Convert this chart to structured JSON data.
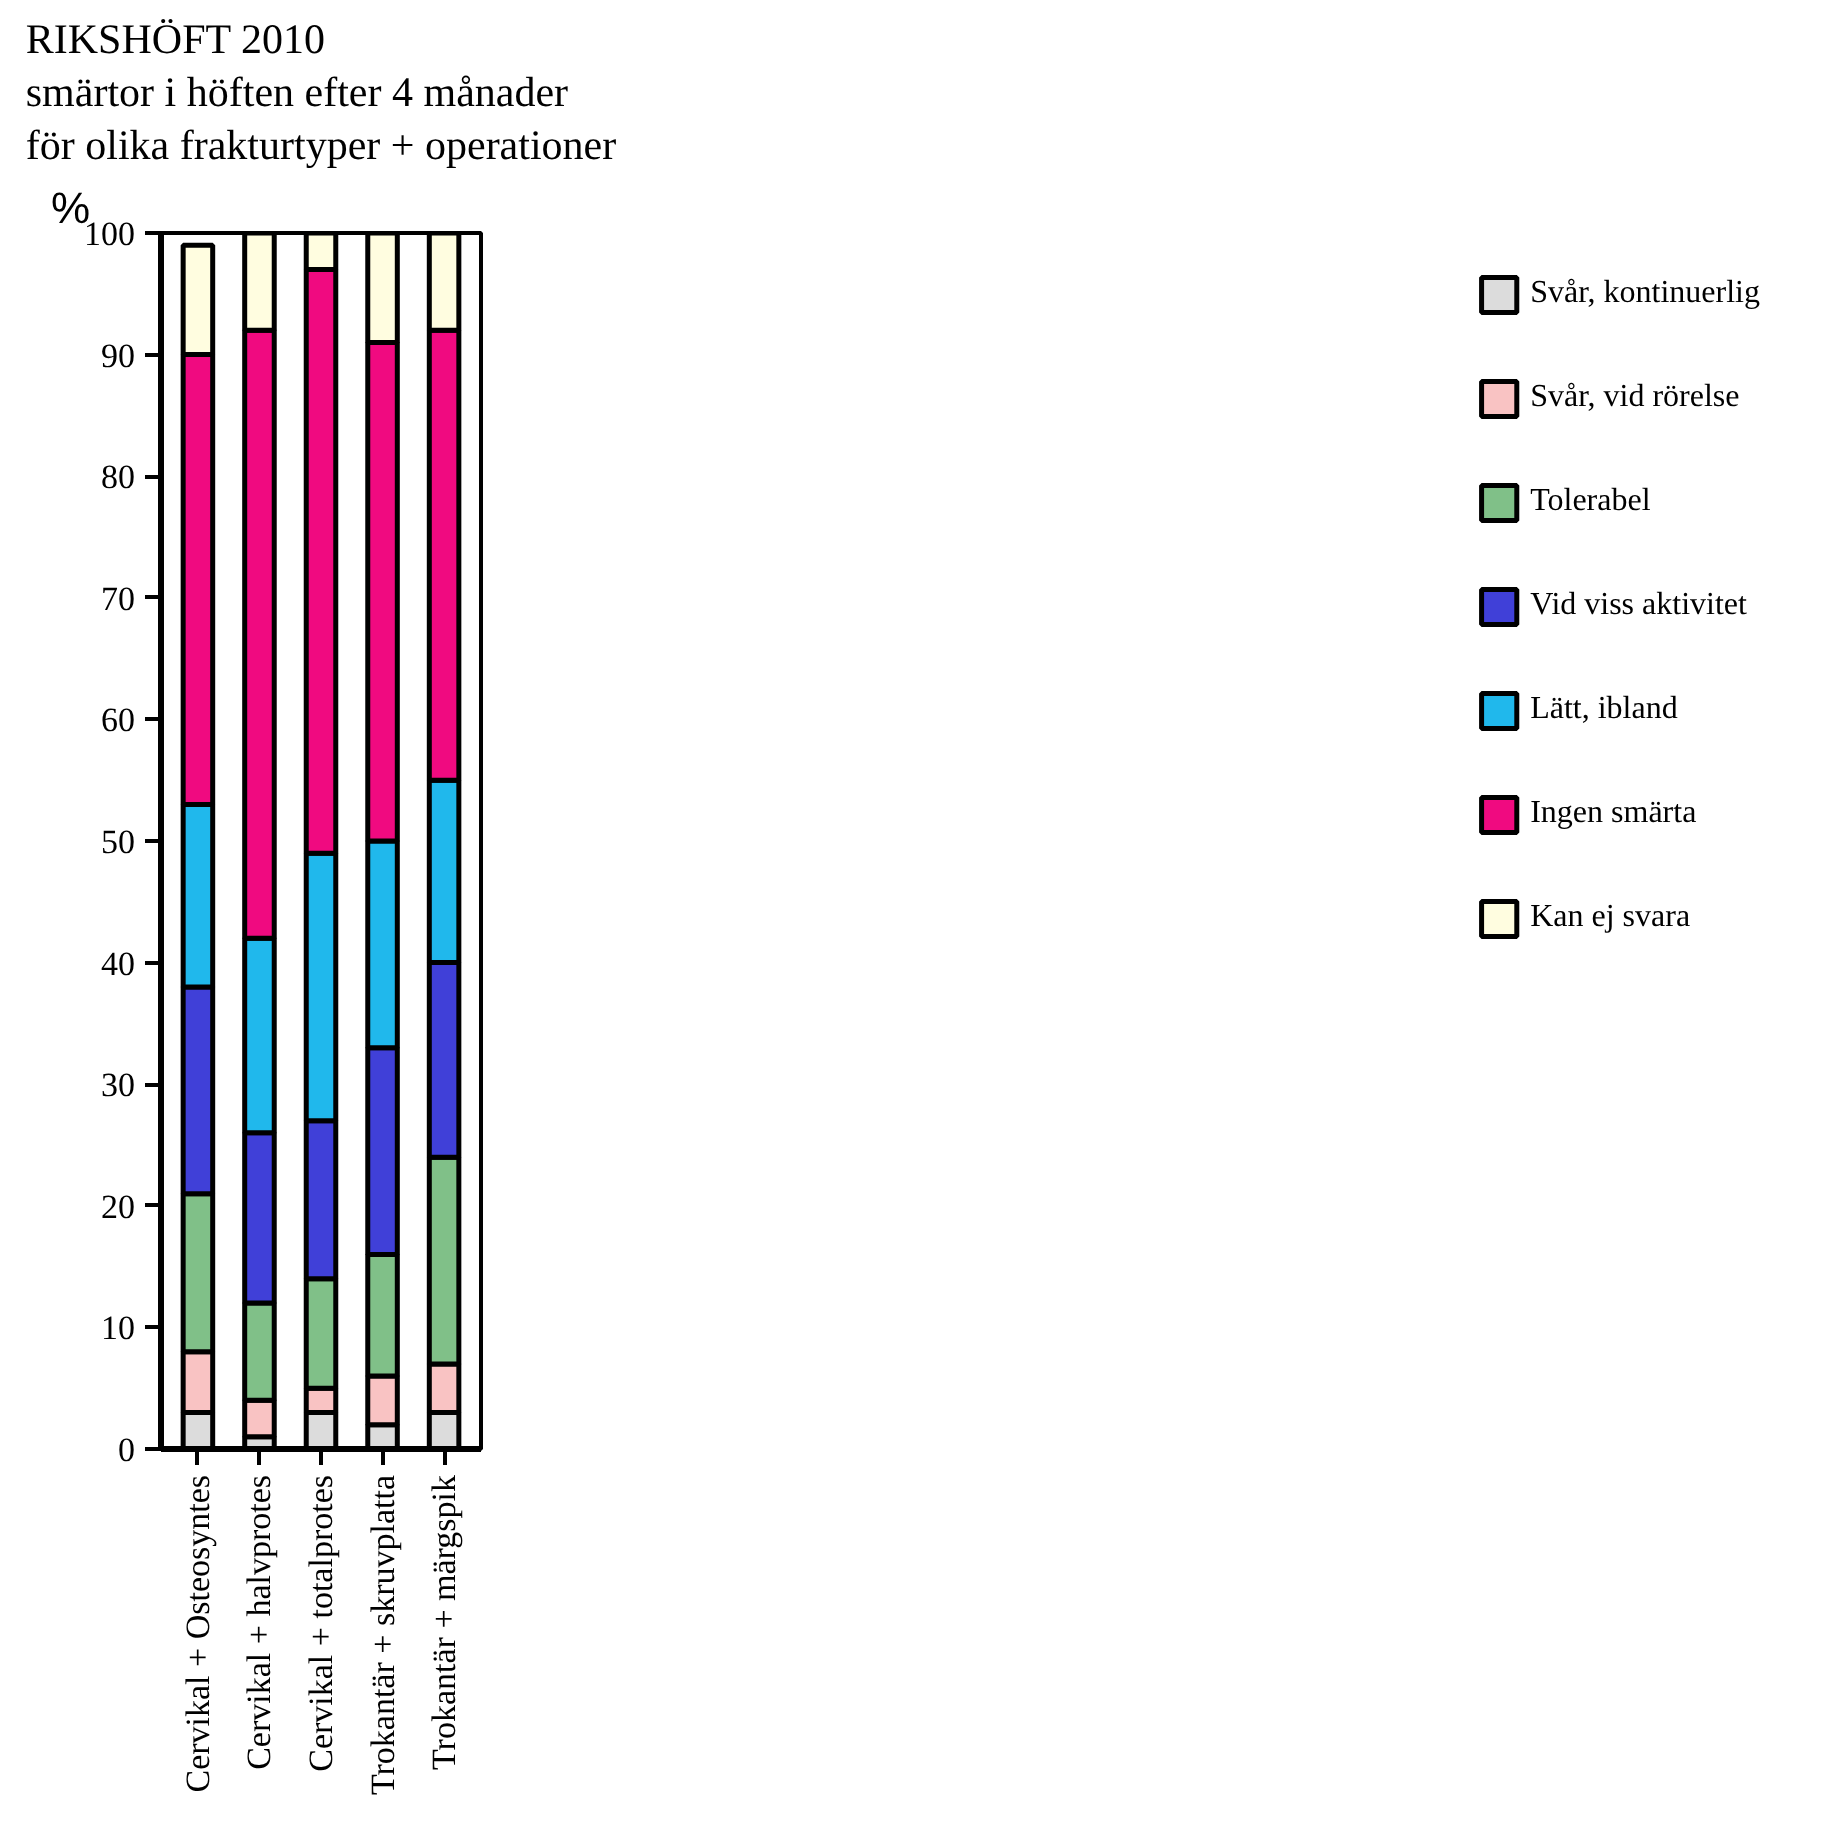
{
  "chart_data": {
    "type": "bar",
    "title": "RIKSHÖFT 2010\nsmärtor i höften efter 4 månader\nför olika frakturtyper + operationer",
    "ylabel": "%",
    "categories": [
      "Cervikal + Osteosyntes",
      "Cervikal + halvprotes",
      "Cervikal + totalprotes",
      "Trokantär + skruvplatta",
      "Trokantär + märgspik"
    ],
    "stacked": true,
    "ylim": [
      0,
      100
    ],
    "yticks": [
      0,
      10,
      20,
      30,
      40,
      50,
      60,
      70,
      80,
      90,
      100
    ],
    "grid": false,
    "legend": "right",
    "series": [
      {
        "name": "Svår, kontinuerlig",
        "color": "#dcdcdc",
        "values": [
          3,
          1,
          3,
          2,
          3
        ]
      },
      {
        "name": "Svår, vid rörelse",
        "color": "#f9c3c3",
        "values": [
          5,
          3,
          2,
          4,
          4
        ]
      },
      {
        "name": "Tolerabel",
        "color": "#80c088",
        "values": [
          13,
          8,
          9,
          10,
          17
        ]
      },
      {
        "name": "Vid viss aktivitet",
        "color": "#4040d8",
        "values": [
          17,
          14,
          13,
          17,
          16
        ]
      },
      {
        "name": "Lätt, ibland",
        "color": "#20b8ec",
        "values": [
          15,
          16,
          22,
          17,
          15
        ]
      },
      {
        "name": "Ingen smärta",
        "color": "#f00a80",
        "values": [
          37,
          50,
          48,
          41,
          37
        ]
      },
      {
        "name": "Kan ej svara",
        "color": "#fffde0",
        "values": [
          9,
          8,
          3,
          9,
          8
        ]
      }
    ]
  }
}
